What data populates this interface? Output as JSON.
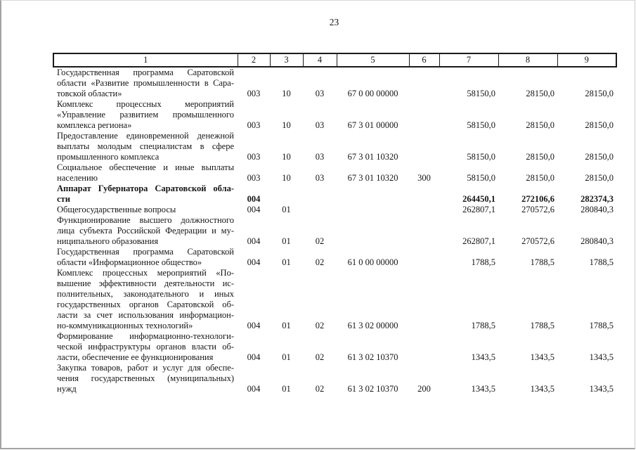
{
  "page": {
    "number": "23"
  },
  "colors": {
    "text": "#151515",
    "table_border": "#1a1a1a",
    "page_edge": "#a3a3a3",
    "background": "#ffffff"
  },
  "table": {
    "headers": [
      "1",
      "2",
      "3",
      "4",
      "5",
      "6",
      "7",
      "8",
      "9"
    ],
    "rows": [
      {
        "bold": false,
        "name_lines": [
          "Государственная программа Саратовской",
          "области «Развитие промышленности в Сара-",
          "товской области»"
        ],
        "cells": [
          "003",
          "10",
          "03",
          "67 0 00 00000",
          "",
          "58150,0",
          "28150,0",
          "28150,0"
        ]
      },
      {
        "bold": false,
        "name_lines": [
          "Комплекс процессных мероприятий",
          "«Управление развитием промышленного",
          "комплекса региона»"
        ],
        "cells": [
          "003",
          "10",
          "03",
          "67 3 01 00000",
          "",
          "58150,0",
          "28150,0",
          "28150,0"
        ]
      },
      {
        "bold": false,
        "name_lines": [
          "Предоставление единовременной денежной",
          "выплаты молодым специалистам в сфере",
          "промышленного комплекса"
        ],
        "cells": [
          "003",
          "10",
          "03",
          "67 3 01 10320",
          "",
          "58150,0",
          "28150,0",
          "28150,0"
        ]
      },
      {
        "bold": false,
        "name_lines": [
          "Социальное обеспечение и иные выплаты",
          "населению"
        ],
        "cells": [
          "003",
          "10",
          "03",
          "67 3 01 10320",
          "300",
          "58150,0",
          "28150,0",
          "28150,0"
        ]
      },
      {
        "bold": true,
        "name_lines": [
          "Аппарат Губернатора Саратовской обла-",
          "сти"
        ],
        "cells": [
          "004",
          "",
          "",
          "",
          "",
          "264450,1",
          "272106,6",
          "282374,3"
        ]
      },
      {
        "bold": false,
        "name_lines": [
          "Общегосударственные вопросы"
        ],
        "cells": [
          "004",
          "01",
          "",
          "",
          "",
          "262807,1",
          "270572,6",
          "280840,3"
        ]
      },
      {
        "bold": false,
        "name_lines": [
          "Функционирование высшего должностного",
          "лица субъекта Российской Федерации и му-",
          "ниципального образования"
        ],
        "cells": [
          "004",
          "01",
          "02",
          "",
          "",
          "262807,1",
          "270572,6",
          "280840,3"
        ]
      },
      {
        "bold": false,
        "name_lines": [
          "Государственная программа Саратовской",
          "области «Информационное общество»"
        ],
        "cells": [
          "004",
          "01",
          "02",
          "61 0 00 00000",
          "",
          "1788,5",
          "1788,5",
          "1788,5"
        ]
      },
      {
        "bold": false,
        "name_lines": [
          "Комплекс процессных мероприятий «По-",
          "вышение эффективности деятельности ис-",
          "полнительных, законодательного и иных",
          "государственных органов Саратовской об-",
          "ласти за счет использования информацион-",
          "но-коммуникационных технологий»"
        ],
        "cells": [
          "004",
          "01",
          "02",
          "61 3 02 00000",
          "",
          "1788,5",
          "1788,5",
          "1788,5"
        ]
      },
      {
        "bold": false,
        "name_lines": [
          "Формирование информационно-технологи-",
          "ческой инфраструктуры органов власти об-",
          "ласти, обеспечение ее функционирования"
        ],
        "cells": [
          "004",
          "01",
          "02",
          "61 3 02 10370",
          "",
          "1343,5",
          "1343,5",
          "1343,5"
        ]
      },
      {
        "bold": false,
        "name_lines": [
          "Закупка товаров, работ и услуг для обеспе-",
          "чения государственных (муниципальных)",
          "нужд"
        ],
        "cells": [
          "004",
          "01",
          "02",
          "61 3 02 10370",
          "200",
          "1343,5",
          "1343,5",
          "1343,5"
        ]
      }
    ]
  }
}
